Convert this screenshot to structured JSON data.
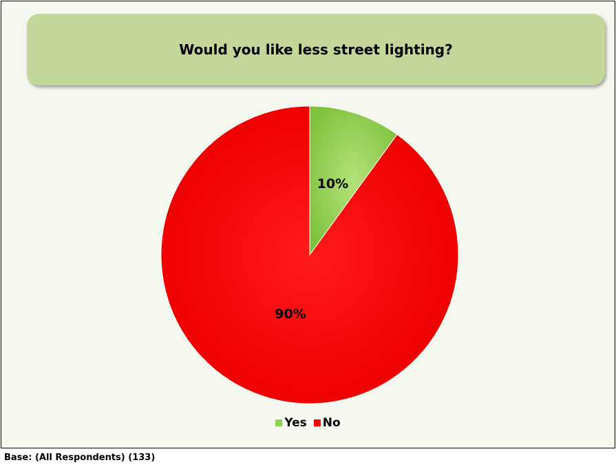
{
  "chart_data": {
    "type": "pie",
    "title": "Would you like less street lighting?",
    "categories": [
      "Yes",
      "No"
    ],
    "values": [
      10,
      90
    ],
    "data_labels": [
      "10%",
      "90%"
    ],
    "colors": [
      "#92d050",
      "#ff0000"
    ],
    "legend": {
      "position": "bottom",
      "entries": [
        "Yes",
        "No"
      ]
    }
  },
  "footer": {
    "base_text": "Base: (All Respondents) (133)"
  }
}
